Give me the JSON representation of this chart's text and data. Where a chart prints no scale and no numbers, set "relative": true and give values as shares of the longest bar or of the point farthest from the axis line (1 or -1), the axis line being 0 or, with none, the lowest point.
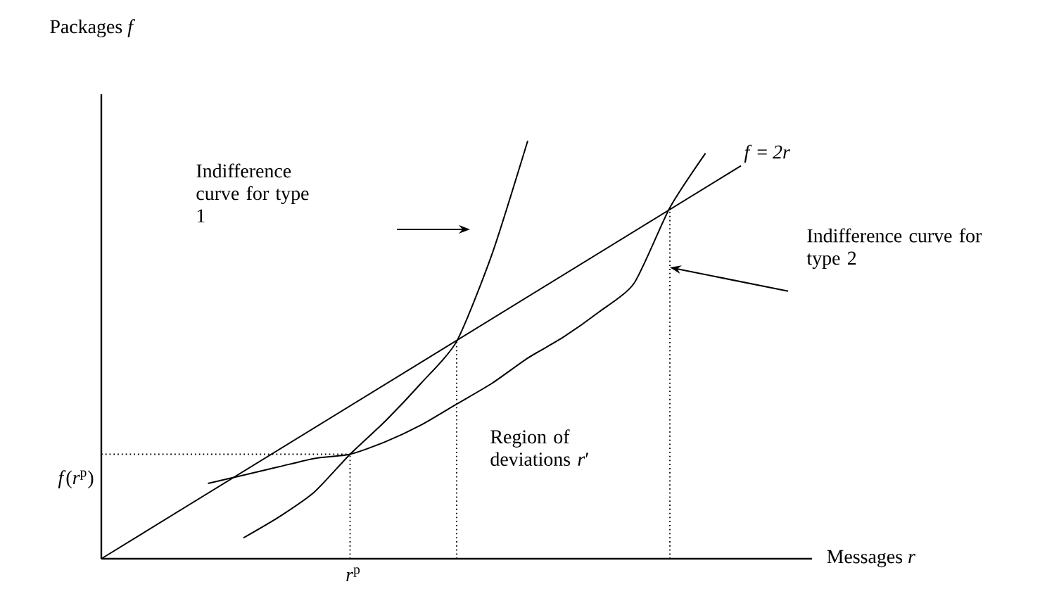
{
  "chart_data": {
    "type": "line",
    "relative": true,
    "xlabel": "Messages *r*",
    "tick_labels": false,
    "categories": [
      null,
      null,
      null,
      null,
      null,
      null,
      null,
      null,
      null,
      null,
      null,
      null,
      null,
      null,
      null,
      null,
      null,
      null,
      null,
      null,
      null
    ],
    "series": [
      {
        "name": "*f* = *2r*",
        "color": "#000000",
        "values": [
          0,
          0.05,
          0.1,
          0.16,
          0.21,
          0.26,
          0.31,
          0.37,
          0.42,
          0.47,
          0.52,
          0.57,
          0.63,
          0.68,
          0.73,
          0.78,
          0.84,
          0.89,
          0.94,
          null,
          null
        ]
      },
      {
        "color": "#000000",
        "values": [
          null,
          null,
          null,
          null,
          0.05,
          0.1,
          0.16,
          0.25,
          0.33,
          0.42,
          0.52,
          0.73,
          1.0,
          null,
          null,
          null,
          null,
          null,
          null,
          null,
          null
        ]
      },
      {
        "color": "#000000",
        "values": [
          null,
          null,
          null,
          0.18,
          0.2,
          0.22,
          0.24,
          0.25,
          0.28,
          0.32,
          0.37,
          0.42,
          0.48,
          0.53,
          0.59,
          0.66,
          0.84,
          0.97,
          null,
          null,
          null
        ]
      }
    ],
    "ref_lines": [
      {
        "axis": "y",
        "value": 0.25,
        "label": "*f*(*r*$^{p}$)",
        "line_style": "dotted",
        "color": "#000000"
      }
    ],
    "annotations": [
      "Packages *f*",
      "Indifference curve for type 1",
      "Indifference curve for type 2",
      "Region of deviations *r*′",
      "*r*$^{p}$"
    ]
  }
}
